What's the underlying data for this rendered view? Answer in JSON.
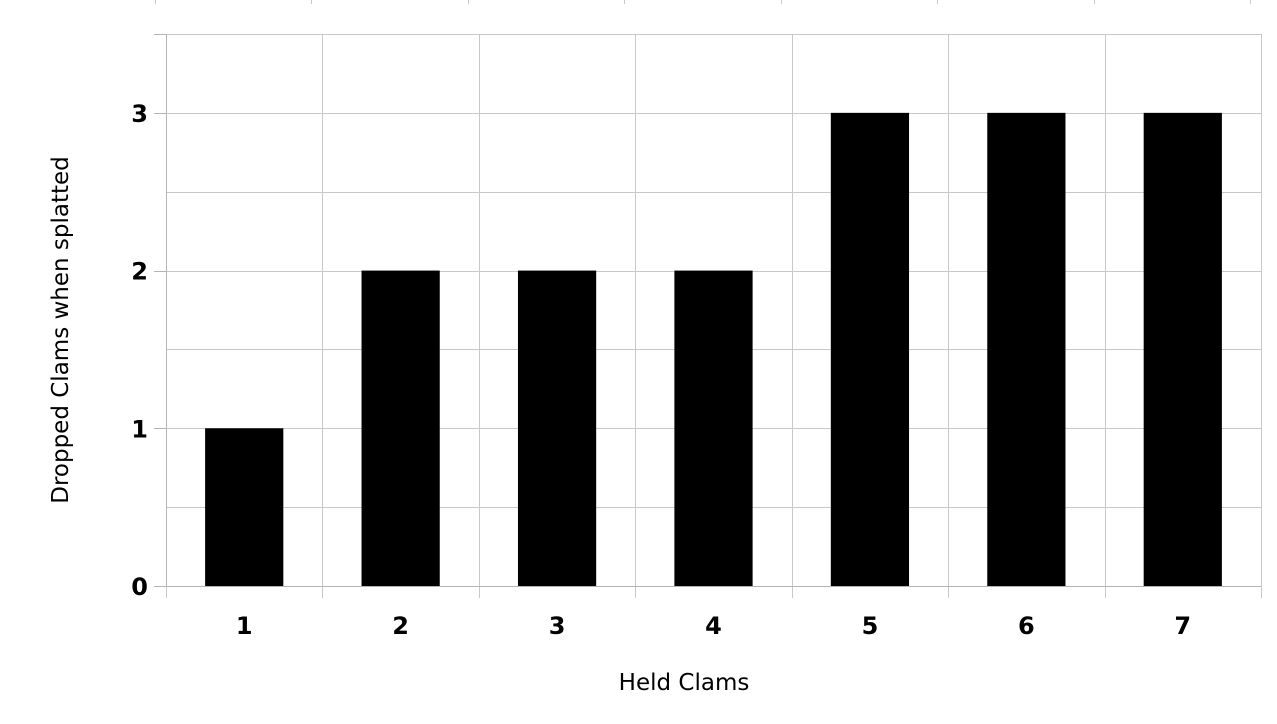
{
  "chart_data": {
    "type": "bar",
    "title": "",
    "xlabel": "Held Clams",
    "ylabel": "Dropped Clams when splatted",
    "categories": [
      "1",
      "2",
      "3",
      "4",
      "5",
      "6",
      "7"
    ],
    "values": [
      1,
      2,
      2,
      2,
      3,
      3,
      3
    ],
    "ylim": [
      0,
      3.5
    ],
    "yticks": [
      "0",
      "1",
      "2",
      "3"
    ],
    "minor_grid_step": 0.5,
    "grid": true,
    "legend": "none",
    "colors": {
      "bar": "#000000",
      "grid": "#c8c8c8",
      "axis": "#b4b4b4",
      "text": "#000000"
    }
  }
}
